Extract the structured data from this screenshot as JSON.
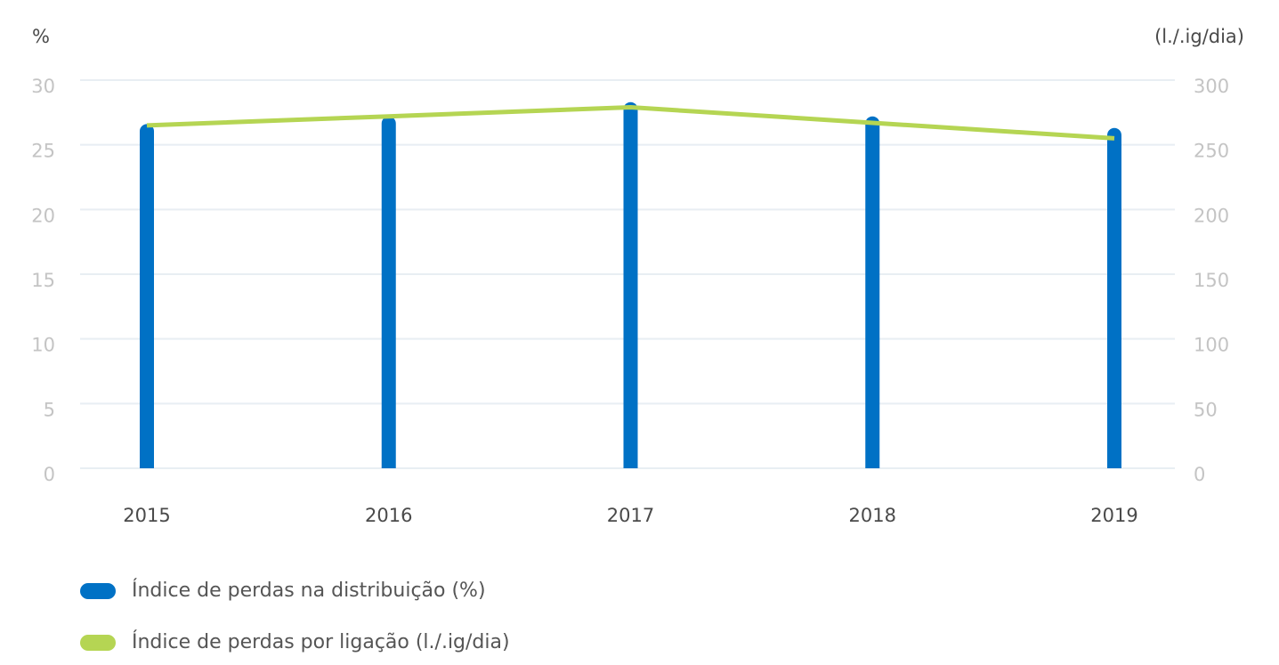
{
  "chart_data": {
    "type": "bar",
    "y_label": "%",
    "y2_label": "(l./.ig/dia)",
    "categories": [
      "2015",
      "2016",
      "2017",
      "2018",
      "2019"
    ],
    "series": [
      {
        "name": "Índice de perdas na distribuição (%)",
        "type": "bar",
        "color": "#0071c5",
        "values": [
          26.6,
          27.2,
          28.3,
          27.2,
          26.3
        ]
      },
      {
        "name": "Índice de perdas por ligação (l./.ig/dia)",
        "type": "line",
        "axis": "y2",
        "color": "#b5d553",
        "values": [
          265,
          272,
          279,
          267,
          255
        ]
      }
    ],
    "ylim": [
      0,
      30
    ],
    "yticks": [
      0,
      5,
      10,
      15,
      20,
      25,
      30
    ],
    "y2lim": [
      0,
      300
    ],
    "y2ticks": [
      0,
      50,
      100,
      150,
      200,
      250,
      300
    ],
    "grid": true,
    "legend": "bottom-left"
  }
}
